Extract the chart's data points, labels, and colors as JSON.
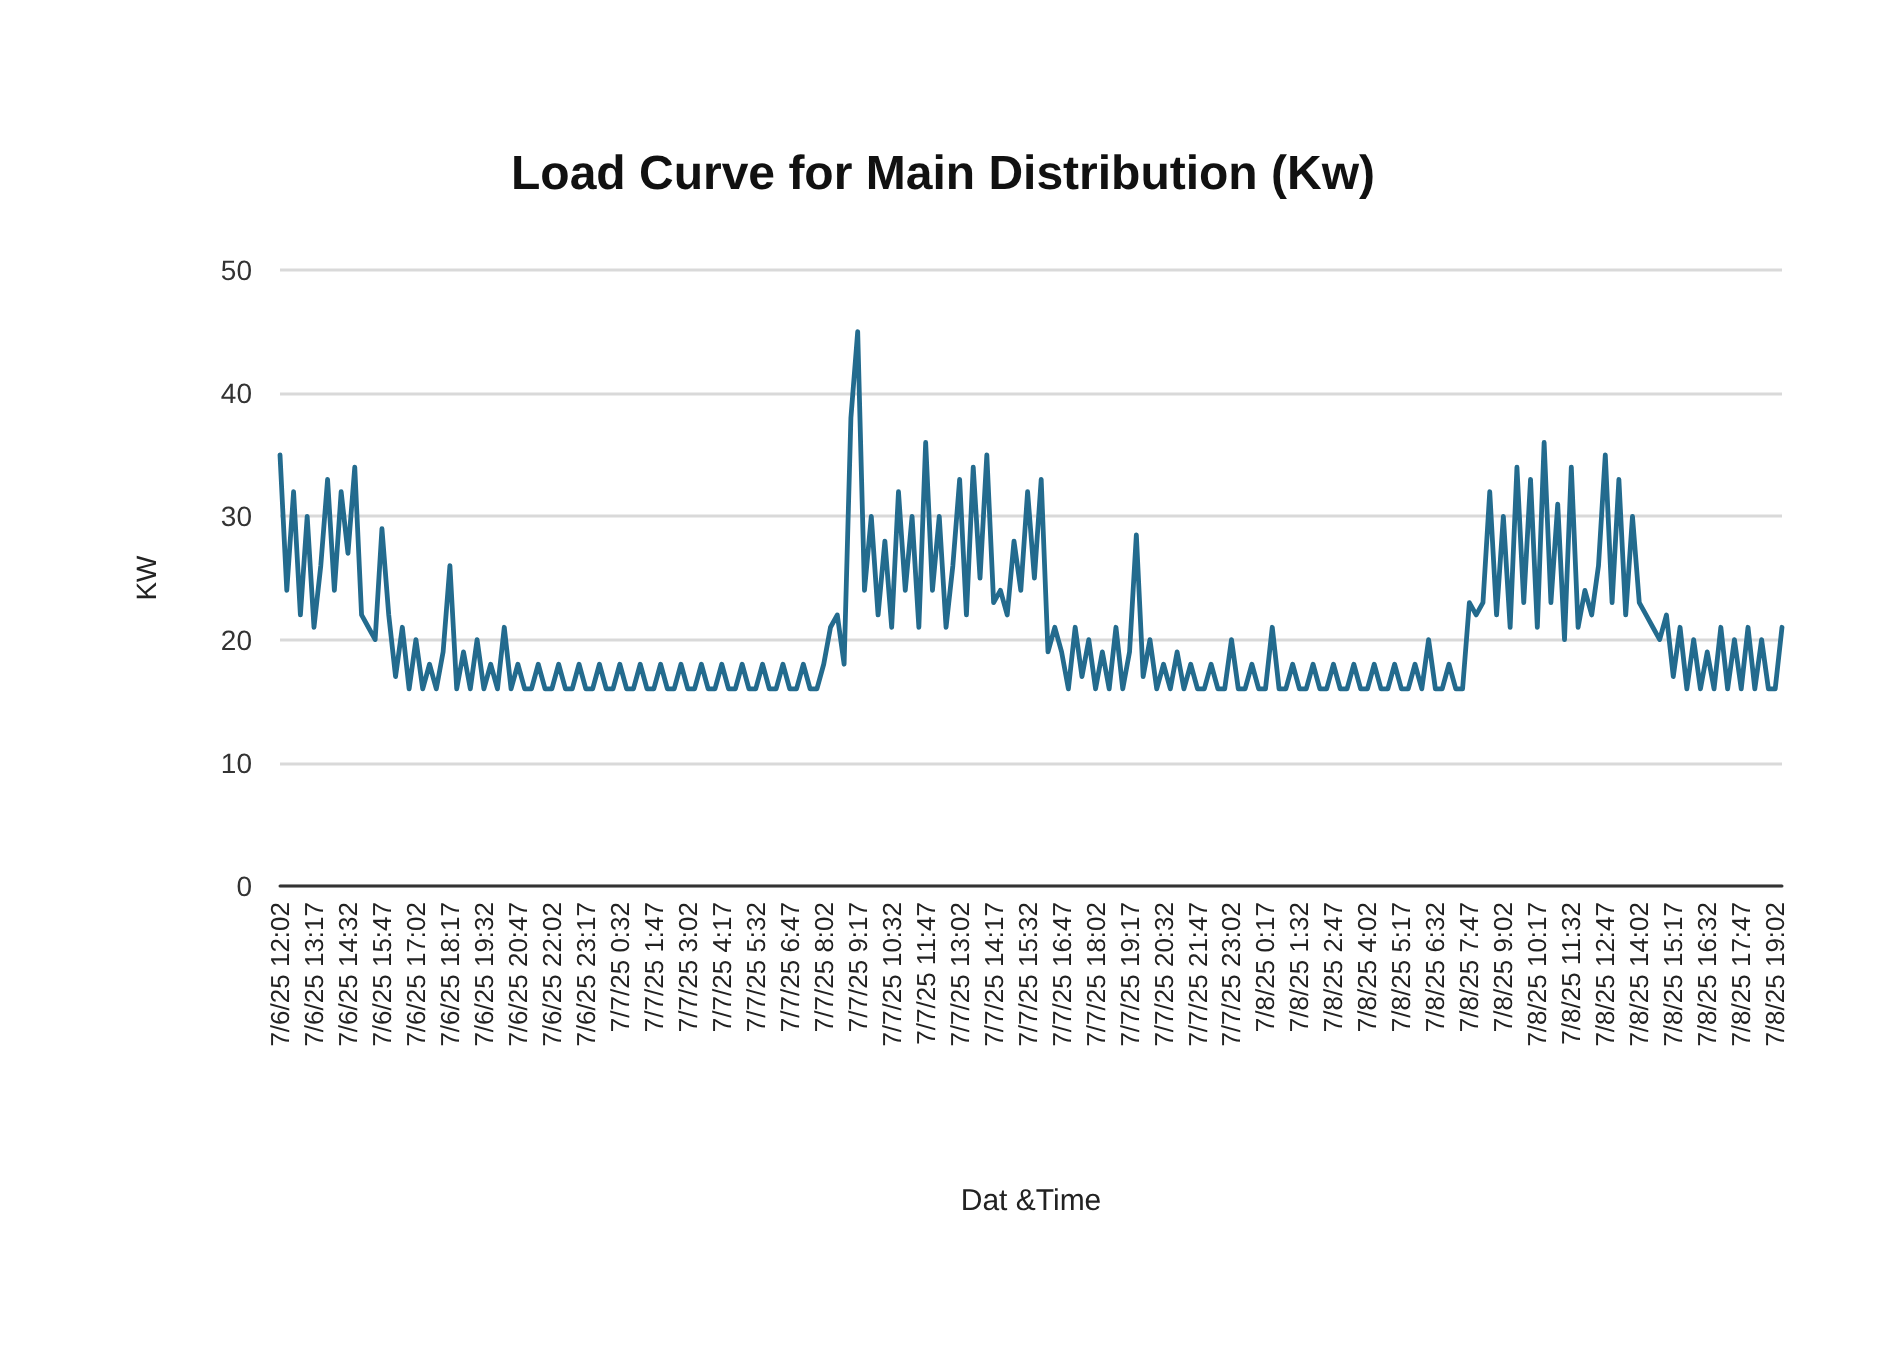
{
  "chart_data": {
    "type": "line",
    "title": "Load Curve for Main Distribution (Kw)",
    "xlabel": "Dat &Time",
    "ylabel": "KW",
    "categories": [
      "7/6/25 12:02",
      null,
      null,
      null,
      null,
      "7/6/25 13:17",
      null,
      null,
      null,
      null,
      "7/6/25 14:32",
      null,
      null,
      null,
      null,
      "7/6/25 15:47",
      null,
      null,
      null,
      null,
      "7/6/25 17:02",
      null,
      null,
      null,
      null,
      "7/6/25 18:17",
      null,
      null,
      null,
      null,
      "7/6/25 19:32",
      null,
      null,
      null,
      null,
      "7/6/25 20:47",
      null,
      null,
      null,
      null,
      "7/6/25 22:02",
      null,
      null,
      null,
      null,
      "7/6/25 23:17",
      null,
      null,
      null,
      null,
      "7/7/25 0:32",
      null,
      null,
      null,
      null,
      "7/7/25 1:47",
      null,
      null,
      null,
      null,
      "7/7/25 3:02",
      null,
      null,
      null,
      null,
      "7/7/25 4:17",
      null,
      null,
      null,
      null,
      "7/7/25 5:32",
      null,
      null,
      null,
      null,
      "7/7/25 6:47",
      null,
      null,
      null,
      null,
      "7/7/25 8:02",
      null,
      null,
      null,
      null,
      "7/7/25 9:17",
      null,
      null,
      null,
      null,
      "7/7/25 10:32",
      null,
      null,
      null,
      null,
      "7/7/25 11:47",
      null,
      null,
      null,
      null,
      "7/7/25 13:02",
      null,
      null,
      null,
      null,
      "7/7/25 14:17",
      null,
      null,
      null,
      null,
      "7/7/25 15:32",
      null,
      null,
      null,
      null,
      "7/7/25 16:47",
      null,
      null,
      null,
      null,
      "7/7/25 18:02",
      null,
      null,
      null,
      null,
      "7/7/25 19:17",
      null,
      null,
      null,
      null,
      "7/7/25 20:32",
      null,
      null,
      null,
      null,
      "7/7/25 21:47",
      null,
      null,
      null,
      null,
      "7/7/25 23:02",
      null,
      null,
      null,
      null,
      "7/8/25 0:17",
      null,
      null,
      null,
      null,
      "7/8/25 1:32",
      null,
      null,
      null,
      null,
      "7/8/25 2:47",
      null,
      null,
      null,
      null,
      "7/8/25 4:02",
      null,
      null,
      null,
      null,
      "7/8/25 5:17",
      null,
      null,
      null,
      null,
      "7/8/25 6:32",
      null,
      null,
      null,
      null,
      "7/8/25 7:47",
      null,
      null,
      null,
      null,
      "7/8/25 9:02",
      null,
      null,
      null,
      null,
      "7/8/25 10:17",
      null,
      null,
      null,
      null,
      "7/8/25 11:32",
      null,
      null,
      null,
      null,
      "7/8/25 12:47",
      null,
      null,
      null,
      null,
      "7/8/25 14:02",
      null,
      null,
      null,
      null,
      "7/8/25 15:17",
      null,
      null,
      null,
      null,
      "7/8/25 16:32",
      null,
      null,
      null,
      null,
      "7/8/25 17:47",
      null,
      null,
      null,
      null,
      "7/8/25 19:02",
      null
    ],
    "series": [
      {
        "color": "#236b8e",
        "values": [
          35,
          24,
          32,
          22,
          30,
          21,
          26,
          33,
          24,
          32,
          27,
          34,
          22,
          21,
          20,
          29,
          22,
          17,
          21,
          16,
          20,
          16,
          18,
          16,
          19,
          26,
          16,
          19,
          16,
          20,
          16,
          18,
          16,
          21,
          16,
          18,
          16,
          16,
          18,
          16,
          16,
          18,
          16,
          16,
          18,
          16,
          16,
          18,
          16,
          16,
          18,
          16,
          16,
          18,
          16,
          16,
          18,
          16,
          16,
          18,
          16,
          16,
          18,
          16,
          16,
          18,
          16,
          16,
          18,
          16,
          16,
          18,
          16,
          16,
          18,
          16,
          16,
          18,
          16,
          16,
          18,
          21,
          22,
          18,
          38,
          45,
          24,
          30,
          22,
          28,
          21,
          32,
          24,
          30,
          21,
          36,
          24,
          30,
          21,
          26,
          33,
          22,
          34,
          25,
          35,
          23,
          24,
          22,
          28,
          24,
          32,
          25,
          33,
          19,
          21,
          19,
          16,
          21,
          17,
          20,
          16,
          19,
          16,
          21,
          16,
          19,
          28.5,
          17,
          20,
          16,
          18,
          16,
          19,
          16,
          18,
          16,
          16,
          18,
          16,
          16,
          20,
          16,
          16,
          18,
          16,
          16,
          21,
          16,
          16,
          18,
          16,
          16,
          18,
          16,
          16,
          18,
          16,
          16,
          18,
          16,
          16,
          18,
          16,
          16,
          18,
          16,
          16,
          18,
          16,
          20,
          16,
          16,
          18,
          16,
          16,
          23,
          22,
          23,
          32,
          22,
          30,
          21,
          34,
          23,
          33,
          21,
          36,
          23,
          31,
          20,
          34,
          21,
          24,
          22,
          26,
          35,
          23,
          33,
          22,
          30,
          23,
          22,
          21,
          20,
          22,
          17,
          21,
          16,
          20,
          16,
          19,
          16,
          21,
          16,
          20,
          16,
          21,
          16,
          20,
          16,
          16,
          21
        ]
      }
    ],
    "ylim": [
      0,
      50
    ],
    "yticks": [
      0,
      10,
      20,
      30,
      40,
      50
    ],
    "grid": "y",
    "marker": "none"
  }
}
